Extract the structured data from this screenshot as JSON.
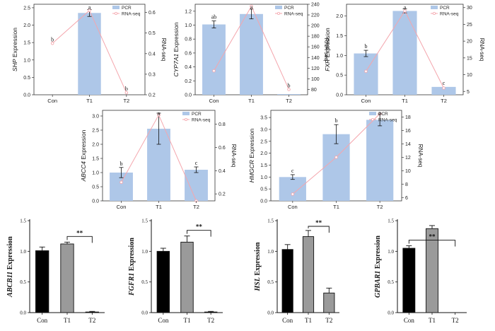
{
  "chart_data": [
    {
      "id": "shp",
      "type": "bar+line",
      "gene": "SHP",
      "ylabel_suffix": " Expression",
      "y2label": "RNA-seq",
      "categories": [
        "Con",
        "T1",
        "T2"
      ],
      "yticks": [
        "0.0",
        "0.5",
        "1.0",
        "1.5",
        "2.0",
        "2.5"
      ],
      "ylim": [
        0,
        2.6
      ],
      "y2ticks": [
        "0.2",
        "0.3",
        "0.4",
        "0.5",
        "0.6"
      ],
      "y2lim": [
        0.2,
        0.64
      ],
      "series": [
        {
          "name": "PCR",
          "values": [
            0.0,
            2.35,
            0.0
          ],
          "errors": [
            0,
            0.1,
            0
          ],
          "letters": [
            "b",
            "a",
            "b"
          ]
        },
        {
          "name": "RNA-seq",
          "values": [
            0.45,
            0.61,
            0.21
          ]
        }
      ],
      "colors": {
        "bar": "#aec7e8",
        "line": "#f4a6ad"
      }
    },
    {
      "id": "cyp7a1",
      "type": "bar+line",
      "gene": "CYP7A1",
      "ylabel_suffix": " Expression",
      "y2label": "RNA-seq",
      "categories": [
        "Con",
        "T1",
        "T2"
      ],
      "yticks": [
        "0.0",
        "0.2",
        "0.4",
        "0.6",
        "0.8",
        "1.0",
        "1.2"
      ],
      "ylim": [
        0,
        1.3
      ],
      "y2ticks": [
        "80",
        "100",
        "120",
        "140",
        "160",
        "180",
        "200",
        "220",
        "240"
      ],
      "y2lim": [
        70,
        240
      ],
      "series": [
        {
          "name": "PCR",
          "values": [
            1.01,
            1.16,
            0.01
          ],
          "errors": [
            0.05,
            0.07,
            0
          ],
          "letters": [
            "ab",
            "a",
            "b"
          ]
        },
        {
          "name": "RNA-seq",
          "values": [
            115,
            236,
            80
          ]
        }
      ],
      "colors": {
        "bar": "#aec7e8",
        "line": "#f4a6ad"
      }
    },
    {
      "id": "fxr",
      "type": "bar+line",
      "gene": "FXR",
      "ylabel_suffix": " Expression",
      "y2label": "RNA-seq",
      "categories": [
        "Con",
        "T1",
        "T2"
      ],
      "yticks": [
        "0.0",
        "0.5",
        "1.0",
        "1.5",
        "2.0"
      ],
      "ylim": [
        0,
        2.3
      ],
      "y2ticks": [
        "5",
        "10",
        "15",
        "20",
        "25",
        "30"
      ],
      "y2lim": [
        4,
        31
      ],
      "series": [
        {
          "name": "PCR",
          "values": [
            1.05,
            2.13,
            0.2
          ],
          "errors": [
            0.08,
            0.05,
            0
          ],
          "letters": [
            "b",
            "a",
            "c"
          ]
        },
        {
          "name": "RNA-seq",
          "values": [
            11,
            29,
            6
          ]
        }
      ],
      "colors": {
        "bar": "#aec7e8",
        "line": "#f4a6ad"
      }
    },
    {
      "id": "abcc4",
      "type": "bar+line",
      "gene": "ABCC4",
      "ylabel_suffix": " Expression",
      "y2label": "RNA-seq",
      "categories": [
        "Con",
        "T1",
        "T2"
      ],
      "yticks": [
        "0.0",
        "0.5",
        "1.0",
        "1.5",
        "2.0",
        "2.5",
        "3.0"
      ],
      "ylim": [
        0,
        3.2
      ],
      "y2ticks": [
        "0.2",
        "0.4",
        "0.6",
        "0.8"
      ],
      "y2lim": [
        0.14,
        0.92
      ],
      "series": [
        {
          "name": "PCR",
          "values": [
            1.0,
            2.55,
            1.1
          ],
          "errors": [
            0.18,
            0.55,
            0.1
          ],
          "letters": [
            "b",
            "a",
            "c"
          ]
        },
        {
          "name": "RNA-seq",
          "values": [
            0.3,
            0.88,
            0.14
          ]
        }
      ],
      "colors": {
        "bar": "#aec7e8",
        "line": "#f4a6ad"
      }
    },
    {
      "id": "hmgcr",
      "type": "bar+line",
      "gene": "HMGCR",
      "ylabel_suffix": " Expression",
      "y2label": "RNA-seq",
      "categories": [
        "Con",
        "T1",
        "T2"
      ],
      "yticks": [
        "0.0",
        "0.5",
        "1.0",
        "1.5",
        "2.0",
        "2.5",
        "3.0",
        "3.5"
      ],
      "ylim": [
        0,
        3.8
      ],
      "y2ticks": [
        "6",
        "8",
        "10",
        "12",
        "14",
        "16",
        "18"
      ],
      "y2lim": [
        5.5,
        19
      ],
      "series": [
        {
          "name": "PCR",
          "values": [
            1.0,
            2.8,
            3.4
          ],
          "errors": [
            0.1,
            0.4,
            0.25
          ],
          "letters": [
            "c",
            "b",
            "a"
          ]
        },
        {
          "name": "RNA-seq",
          "values": [
            6.5,
            12,
            18.5
          ]
        }
      ],
      "colors": {
        "bar": "#aec7e8",
        "line": "#f4a6ad"
      }
    },
    {
      "id": "abcb11",
      "type": "bar",
      "gene": "ABCB11",
      "ylabel_suffix": " Expression",
      "categories": [
        "Con",
        "T1",
        "T2"
      ],
      "yticks": [
        "0.0",
        "0.5",
        "1.0",
        "1.5"
      ],
      "ylim": [
        0,
        1.5
      ],
      "values": [
        1.01,
        1.12,
        0.01
      ],
      "errors": [
        0.06,
        0.03,
        0.01
      ],
      "bar_colors": [
        "#000000",
        "#9a9a9a",
        "#ffffff"
      ],
      "significance": {
        "from": 1,
        "to": 2,
        "label": "**"
      }
    },
    {
      "id": "fgfr1",
      "type": "bar",
      "gene": "FGFR1",
      "ylabel_suffix": " Expression",
      "categories": [
        "Con",
        "T1",
        "T2"
      ],
      "yticks": [
        "0.0",
        "0.5",
        "1.0",
        "1.5"
      ],
      "ylim": [
        0,
        1.5
      ],
      "values": [
        1.0,
        1.15,
        0.01
      ],
      "errors": [
        0.05,
        0.1,
        0.01
      ],
      "bar_colors": [
        "#000000",
        "#9a9a9a",
        "#ffffff"
      ],
      "significance": {
        "from": 1,
        "to": 2,
        "label": "**"
      }
    },
    {
      "id": "hsl",
      "type": "bar",
      "gene": "HSL",
      "ylabel_suffix": " Expression",
      "categories": [
        "Con",
        "T1",
        "T2"
      ],
      "yticks": [
        "0.0",
        "0.5",
        "1.0",
        "1.5"
      ],
      "ylim": [
        0,
        1.5
      ],
      "values": [
        1.03,
        1.24,
        0.32
      ],
      "errors": [
        0.08,
        0.1,
        0.08
      ],
      "bar_colors": [
        "#000000",
        "#9a9a9a",
        "#9a9a9a"
      ],
      "significance": {
        "from": 1,
        "to": 2,
        "label": "**"
      }
    },
    {
      "id": "gpbar1",
      "type": "bar",
      "gene": "GPBAR1",
      "ylabel_suffix": " Expression",
      "categories": [
        "Con",
        "T1",
        "T2"
      ],
      "yticks": [
        "0.0",
        "0.5",
        "1.0",
        "1.5"
      ],
      "ylim": [
        0,
        1.5
      ],
      "values": [
        1.05,
        1.37,
        0.0
      ],
      "errors": [
        0.04,
        0.05,
        0.0
      ],
      "bar_colors": [
        "#000000",
        "#9a9a9a",
        "#ffffff"
      ],
      "significance": {
        "from": 0,
        "to": 2,
        "label": "**"
      }
    }
  ]
}
